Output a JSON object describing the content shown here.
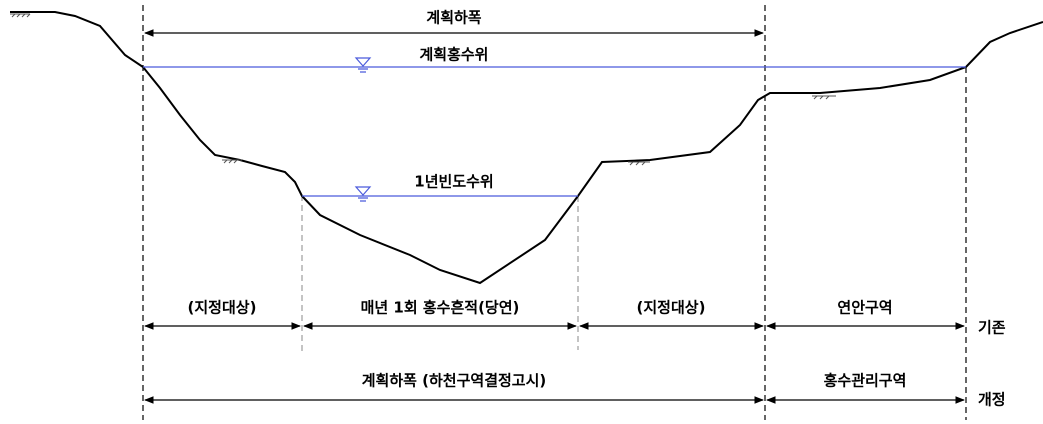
{
  "labels": {
    "plan_width": "계획하폭",
    "plan_flood_level": "계획홍수위",
    "annual_flood_level": "1년빈도수위"
  },
  "existing": {
    "label": "기존",
    "segments": [
      "(지정대상)",
      "매년 1회 홍수흔적(당연)",
      "(지정대상)",
      "연안구역"
    ]
  },
  "revised": {
    "label": "개정",
    "segments": [
      "계획하폭 (하천구역결정고시)",
      "홍수관리구역"
    ]
  }
}
